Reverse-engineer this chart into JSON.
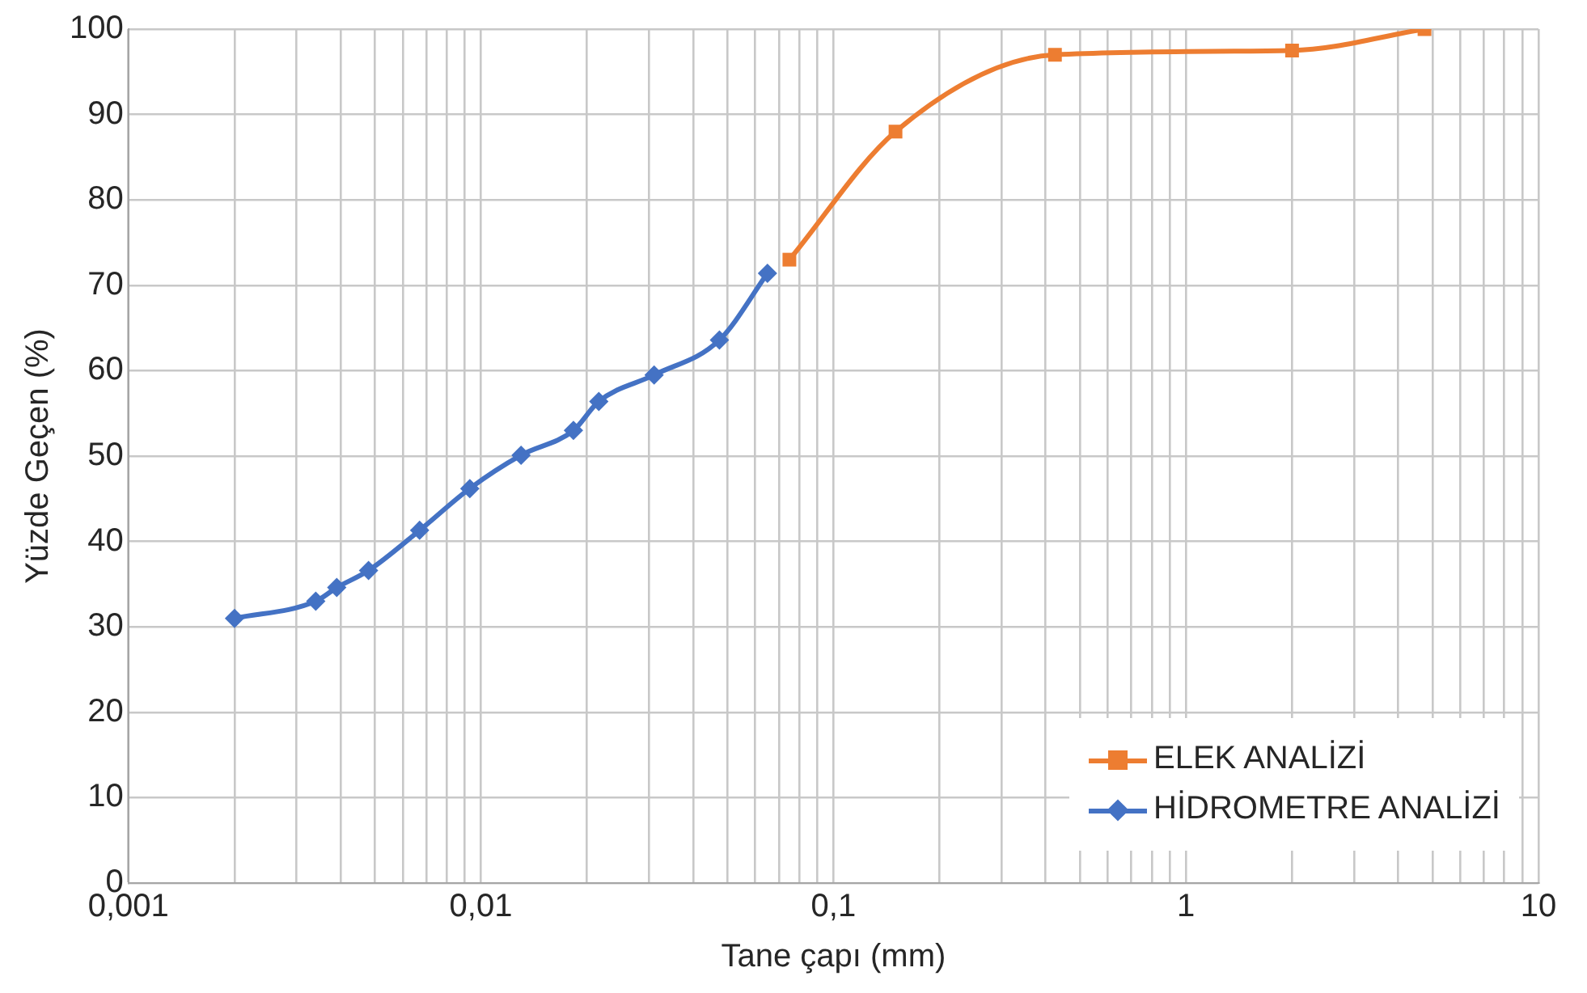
{
  "chart_data": {
    "type": "line",
    "xlabel": "Tane çapı (mm)",
    "ylabel": "Yüzde Geçen (%)",
    "log": "x",
    "xlim": [
      0.001,
      10
    ],
    "xticks": [
      {
        "value": 0.001,
        "label": "0,001"
      },
      {
        "value": 0.002,
        "label": null
      },
      {
        "value": 0.003,
        "label": null
      },
      {
        "value": 0.004,
        "label": null
      },
      {
        "value": 0.005,
        "label": null
      },
      {
        "value": 0.006,
        "label": null
      },
      {
        "value": 0.007,
        "label": null
      },
      {
        "value": 0.008,
        "label": null
      },
      {
        "value": 0.009,
        "label": null
      },
      {
        "value": 0.01,
        "label": "0,01"
      },
      {
        "value": 0.02,
        "label": null
      },
      {
        "value": 0.03,
        "label": null
      },
      {
        "value": 0.04,
        "label": null
      },
      {
        "value": 0.05,
        "label": null
      },
      {
        "value": 0.06,
        "label": null
      },
      {
        "value": 0.07,
        "label": null
      },
      {
        "value": 0.08,
        "label": null
      },
      {
        "value": 0.09,
        "label": null
      },
      {
        "value": 0.1,
        "label": "0,1"
      },
      {
        "value": 0.2,
        "label": null
      },
      {
        "value": 0.3,
        "label": null
      },
      {
        "value": 0.4,
        "label": null
      },
      {
        "value": 0.5,
        "label": null
      },
      {
        "value": 0.6,
        "label": null
      },
      {
        "value": 0.7,
        "label": null
      },
      {
        "value": 0.8,
        "label": null
      },
      {
        "value": 0.9,
        "label": null
      },
      {
        "value": 1,
        "label": "1"
      },
      {
        "value": 2,
        "label": null
      },
      {
        "value": 3,
        "label": null
      },
      {
        "value": 4,
        "label": null
      },
      {
        "value": 5,
        "label": null
      },
      {
        "value": 6,
        "label": null
      },
      {
        "value": 7,
        "label": null
      },
      {
        "value": 8,
        "label": null
      },
      {
        "value": 9,
        "label": null
      },
      {
        "value": 10,
        "label": "10"
      }
    ],
    "ylim": [
      0,
      100
    ],
    "yticks": [
      0,
      10,
      20,
      30,
      40,
      50,
      60,
      70,
      80,
      90,
      100
    ],
    "grid": true,
    "legend": "bottom right",
    "series": [
      {
        "name": "ELEK ANALİZİ",
        "color": "#ed7d31",
        "marker": "square",
        "x": [
          0.075,
          0.15,
          0.425,
          2,
          4.75
        ],
        "values": [
          73,
          88,
          97,
          97.5,
          100
        ]
      },
      {
        "name": "HİDROMETRE ANALİZİ",
        "color": "#4472c4",
        "marker": "diamond",
        "x": [
          0.002,
          0.0034,
          0.0039,
          0.0048,
          0.0067,
          0.0093,
          0.013,
          0.0183,
          0.0216,
          0.031,
          0.0475,
          0.065
        ],
        "values": [
          31,
          33,
          34.6,
          36.6,
          41.3,
          46.2,
          50.1,
          53,
          56.4,
          59.5,
          63.6,
          71.4
        ]
      }
    ]
  }
}
